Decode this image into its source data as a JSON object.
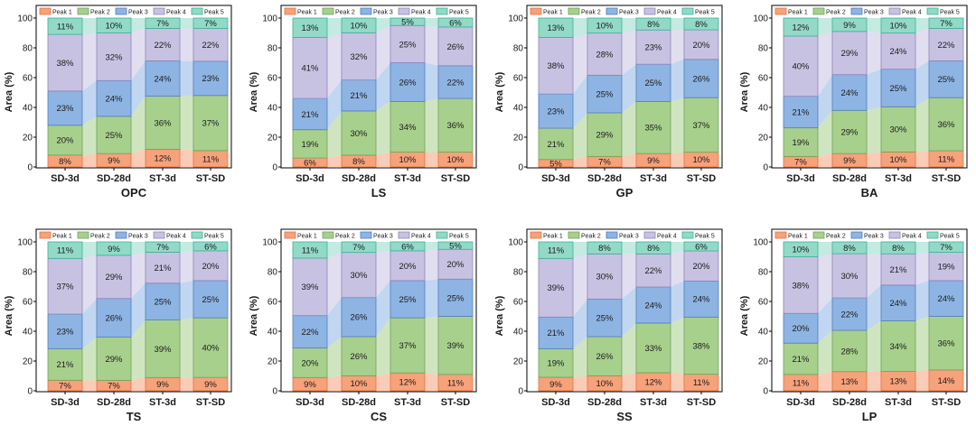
{
  "series_colors": [
    "#F6A27B",
    "#A8D08D",
    "#8EB4E3",
    "#C8C2E2",
    "#93D9C8"
  ],
  "series_edge_colors": [
    "#E3743F",
    "#6FA35A",
    "#4F7FC0",
    "#8E86BC",
    "#3BB394"
  ],
  "chart_data": [
    {
      "type": "bar",
      "stacked": true,
      "title": "OPC",
      "xlabel": "",
      "ylabel": "Area (%)",
      "legend": "top",
      "ylim": [
        0,
        100
      ],
      "yticks": [
        0,
        20,
        40,
        60,
        80,
        100
      ],
      "categories": [
        "SD-3d",
        "SD-28d",
        "ST-3d",
        "ST-SD"
      ],
      "series": [
        {
          "name": "Peak 1",
          "values": [
            8,
            9,
            12,
            11
          ]
        },
        {
          "name": "Peak 2",
          "values": [
            20,
            25,
            36,
            37
          ]
        },
        {
          "name": "Peak 3",
          "values": [
            23,
            24,
            24,
            23
          ]
        },
        {
          "name": "Peak 4",
          "values": [
            38,
            32,
            22,
            22
          ]
        },
        {
          "name": "Peak 5",
          "values": [
            11,
            10,
            7,
            7
          ]
        }
      ]
    },
    {
      "type": "bar",
      "stacked": true,
      "title": "LS",
      "xlabel": "",
      "ylabel": "Area (%)",
      "legend": "top",
      "ylim": [
        0,
        100
      ],
      "yticks": [
        0,
        20,
        40,
        60,
        80,
        100
      ],
      "categories": [
        "SD-3d",
        "SD-28d",
        "ST-3d",
        "ST-SD"
      ],
      "series": [
        {
          "name": "Peak 1",
          "values": [
            6,
            8,
            10,
            10
          ]
        },
        {
          "name": "Peak 2",
          "values": [
            19,
            30,
            34,
            36
          ]
        },
        {
          "name": "Peak 3",
          "values": [
            21,
            21,
            26,
            22
          ]
        },
        {
          "name": "Peak 4",
          "values": [
            41,
            32,
            25,
            26
          ]
        },
        {
          "name": "Peak 5",
          "values": [
            13,
            10,
            5,
            6
          ]
        }
      ]
    },
    {
      "type": "bar",
      "stacked": true,
      "title": "GP",
      "xlabel": "",
      "ylabel": "Area (%)",
      "legend": "top",
      "ylim": [
        0,
        100
      ],
      "yticks": [
        0,
        20,
        40,
        60,
        80,
        100
      ],
      "categories": [
        "SD-3d",
        "SD-28d",
        "ST-3d",
        "ST-SD"
      ],
      "series": [
        {
          "name": "Peak 1",
          "values": [
            5,
            7,
            9,
            10
          ]
        },
        {
          "name": "Peak 2",
          "values": [
            21,
            29,
            35,
            37
          ]
        },
        {
          "name": "Peak 3",
          "values": [
            23,
            25,
            25,
            26
          ]
        },
        {
          "name": "Peak 4",
          "values": [
            38,
            28,
            23,
            20
          ]
        },
        {
          "name": "Peak 5",
          "values": [
            13,
            10,
            8,
            8
          ]
        }
      ]
    },
    {
      "type": "bar",
      "stacked": true,
      "title": "BA",
      "xlabel": "",
      "ylabel": "Area (%)",
      "legend": "top",
      "ylim": [
        0,
        100
      ],
      "yticks": [
        0,
        20,
        40,
        60,
        80,
        100
      ],
      "categories": [
        "SD-3d",
        "SD-28d",
        "ST-3d",
        "ST-SD"
      ],
      "series": [
        {
          "name": "Peak 1",
          "values": [
            7,
            9,
            10,
            11
          ]
        },
        {
          "name": "Peak 2",
          "values": [
            19,
            29,
            30,
            36
          ]
        },
        {
          "name": "Peak 3",
          "values": [
            21,
            24,
            25,
            25
          ]
        },
        {
          "name": "Peak 4",
          "values": [
            40,
            29,
            24,
            22
          ]
        },
        {
          "name": "Peak 5",
          "values": [
            12,
            9,
            10,
            7
          ]
        }
      ]
    },
    {
      "type": "bar",
      "stacked": true,
      "title": "TS",
      "xlabel": "",
      "ylabel": "Area (%)",
      "legend": "top",
      "ylim": [
        0,
        100
      ],
      "yticks": [
        0,
        20,
        40,
        60,
        80,
        100
      ],
      "categories": [
        "SD-3d",
        "SD-28d",
        "ST-3d",
        "ST-SD"
      ],
      "series": [
        {
          "name": "Peak 1",
          "values": [
            7,
            7,
            9,
            9
          ]
        },
        {
          "name": "Peak 2",
          "values": [
            21,
            29,
            39,
            40
          ]
        },
        {
          "name": "Peak 3",
          "values": [
            23,
            26,
            25,
            25
          ]
        },
        {
          "name": "Peak 4",
          "values": [
            37,
            29,
            21,
            20
          ]
        },
        {
          "name": "Peak 5",
          "values": [
            11,
            9,
            7,
            6
          ]
        }
      ]
    },
    {
      "type": "bar",
      "stacked": true,
      "title": "CS",
      "xlabel": "",
      "ylabel": "Area (%)",
      "legend": "top",
      "ylim": [
        0,
        100
      ],
      "yticks": [
        0,
        20,
        40,
        60,
        80,
        100
      ],
      "categories": [
        "SD-3d",
        "SD-28d",
        "ST-3d",
        "ST-SD"
      ],
      "series": [
        {
          "name": "Peak 1",
          "values": [
            9,
            10,
            12,
            11
          ]
        },
        {
          "name": "Peak 2",
          "values": [
            20,
            26,
            37,
            39
          ]
        },
        {
          "name": "Peak 3",
          "values": [
            22,
            26,
            25,
            25
          ]
        },
        {
          "name": "Peak 4",
          "values": [
            39,
            30,
            20,
            20
          ]
        },
        {
          "name": "Peak 5",
          "values": [
            11,
            7,
            6,
            5
          ]
        }
      ]
    },
    {
      "type": "bar",
      "stacked": true,
      "title": "SS",
      "xlabel": "",
      "ylabel": "Area (%)",
      "legend": "top",
      "ylim": [
        0,
        100
      ],
      "yticks": [
        0,
        20,
        40,
        60,
        80,
        100
      ],
      "categories": [
        "SD-3d",
        "SD-28d",
        "ST-3d",
        "ST-SD"
      ],
      "series": [
        {
          "name": "Peak 1",
          "values": [
            9,
            10,
            12,
            11
          ]
        },
        {
          "name": "Peak 2",
          "values": [
            19,
            26,
            33,
            38
          ]
        },
        {
          "name": "Peak 3",
          "values": [
            21,
            25,
            24,
            24
          ]
        },
        {
          "name": "Peak 4",
          "values": [
            39,
            30,
            22,
            20
          ]
        },
        {
          "name": "Peak 5",
          "values": [
            11,
            8,
            8,
            6
          ]
        }
      ]
    },
    {
      "type": "bar",
      "stacked": true,
      "title": "LP",
      "xlabel": "",
      "ylabel": "Area (%)",
      "legend": "top",
      "ylim": [
        0,
        100
      ],
      "yticks": [
        0,
        20,
        40,
        60,
        80,
        100
      ],
      "categories": [
        "SD-3d",
        "SD-28d",
        "ST-3d",
        "ST-SD"
      ],
      "series": [
        {
          "name": "Peak 1",
          "values": [
            11,
            13,
            13,
            14
          ]
        },
        {
          "name": "Peak 2",
          "values": [
            21,
            28,
            34,
            36
          ]
        },
        {
          "name": "Peak 3",
          "values": [
            20,
            22,
            24,
            24
          ]
        },
        {
          "name": "Peak 4",
          "values": [
            38,
            30,
            21,
            19
          ]
        },
        {
          "name": "Peak 5",
          "values": [
            10,
            8,
            8,
            7
          ]
        }
      ]
    }
  ]
}
